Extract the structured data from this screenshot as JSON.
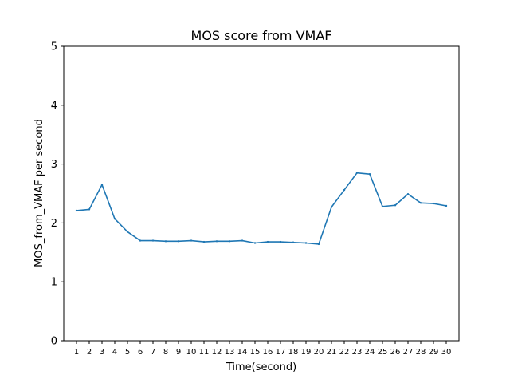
{
  "chart_data": {
    "type": "line",
    "title": "MOS score from VMAF",
    "xlabel": "Time(second)",
    "ylabel": "MOS_from_VMAF per second",
    "xlim": [
      0,
      31
    ],
    "ylim": [
      0,
      5
    ],
    "yticks": [
      0,
      1,
      2,
      3,
      4,
      5
    ],
    "x": [
      1,
      2,
      3,
      4,
      5,
      6,
      7,
      8,
      9,
      10,
      11,
      12,
      13,
      14,
      15,
      16,
      17,
      18,
      19,
      20,
      21,
      22,
      23,
      24,
      25,
      26,
      27,
      28,
      29,
      30
    ],
    "series": [
      {
        "color": "#1f77b4",
        "values": [
          2.21,
          2.23,
          2.65,
          2.07,
          1.85,
          1.7,
          1.7,
          1.69,
          1.69,
          1.7,
          1.68,
          1.69,
          1.69,
          1.7,
          1.66,
          1.68,
          1.68,
          1.67,
          1.66,
          1.64,
          2.27,
          2.56,
          2.85,
          2.83,
          2.28,
          2.3,
          2.49,
          2.34,
          2.33,
          2.29
        ]
      }
    ],
    "grid": false,
    "legend": "none"
  }
}
